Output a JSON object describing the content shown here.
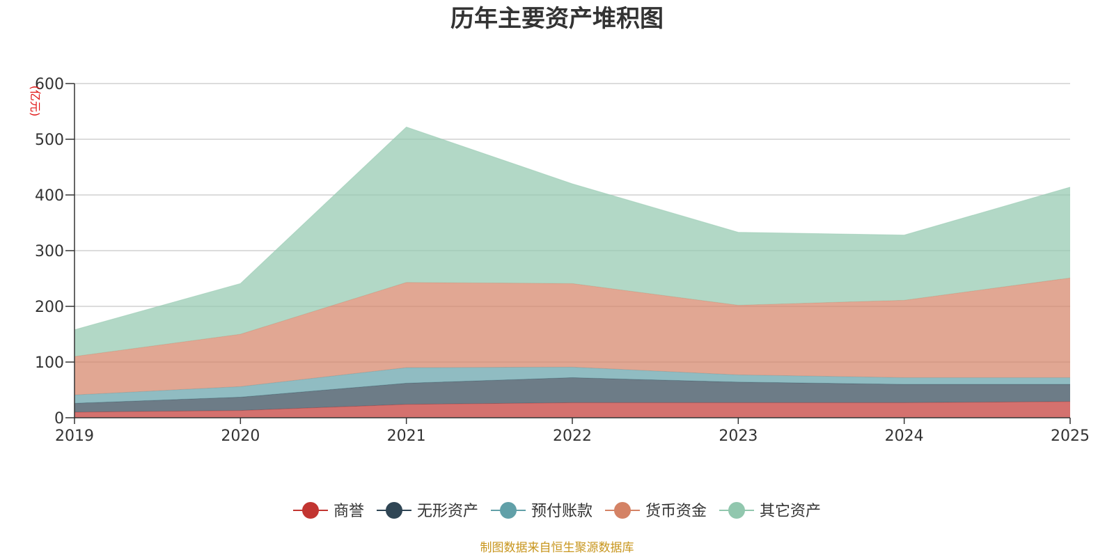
{
  "chart_data": {
    "type": "area",
    "stacked": true,
    "title": "历年主要资产堆积图",
    "ylabel": "(亿元)",
    "xlabel": "",
    "categories": [
      "2019",
      "2020",
      "2021",
      "2022",
      "2023",
      "2024",
      "2025"
    ],
    "ylim": [
      0,
      600
    ],
    "yticks": [
      0,
      100,
      200,
      300,
      400,
      500,
      600
    ],
    "grid": true,
    "legend_position": "bottom-center",
    "series": [
      {
        "name": "商誉",
        "color": "#c23531",
        "values": [
          10,
          13,
          24,
          27,
          27,
          27,
          29
        ]
      },
      {
        "name": "无形资产",
        "color": "#2f4554",
        "values": [
          16,
          24,
          38,
          45,
          37,
          33,
          31
        ]
      },
      {
        "name": "预付账款",
        "color": "#61a0a8",
        "values": [
          15,
          19,
          28,
          19,
          13,
          12,
          12
        ]
      },
      {
        "name": "货币资金",
        "color": "#d48265",
        "values": [
          69,
          94,
          153,
          150,
          125,
          139,
          179
        ]
      },
      {
        "name": "其它资产",
        "color": "#91c7ae",
        "values": [
          48,
          91,
          279,
          179,
          131,
          117,
          163
        ]
      }
    ],
    "source": "制图数据来自恒生聚源数据库"
  }
}
